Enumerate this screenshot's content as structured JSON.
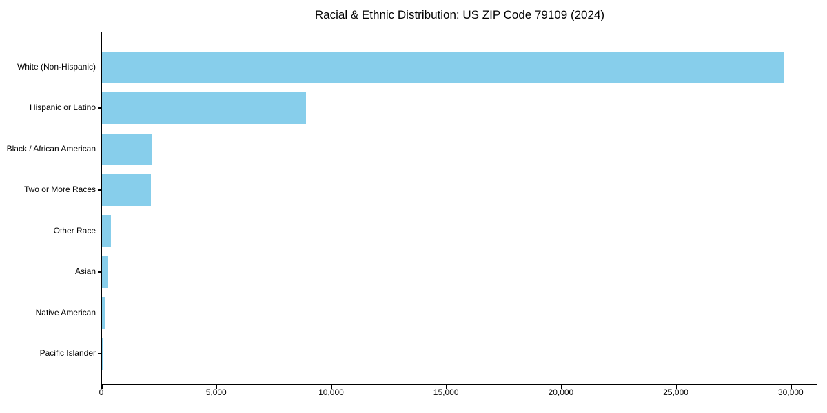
{
  "chart_data": {
    "type": "bar",
    "orientation": "horizontal",
    "title": "Racial & Ethnic Distribution: US ZIP Code 79109 (2024)",
    "categories": [
      "White (Non-Hispanic)",
      "Hispanic or Latino",
      "Black / African American",
      "Two or More Races",
      "Other Race",
      "Asian",
      "Native American",
      "Pacific Islander"
    ],
    "values": [
      29690,
      8890,
      2170,
      2120,
      380,
      230,
      160,
      30
    ],
    "xlabel": "",
    "ylabel": "",
    "xlim": [
      0,
      31100
    ],
    "x_tick_values": [
      0,
      5000,
      10000,
      15000,
      20000,
      25000,
      30000
    ],
    "x_tick_labels": [
      "0",
      "5,000",
      "10,000",
      "15,000",
      "20,000",
      "25,000",
      "30,000"
    ],
    "bar_color": "#87CEEB",
    "axis_color": "#000000",
    "background_color": "#ffffff",
    "grid": false,
    "legend": "none",
    "value_labels_shown": false
  }
}
